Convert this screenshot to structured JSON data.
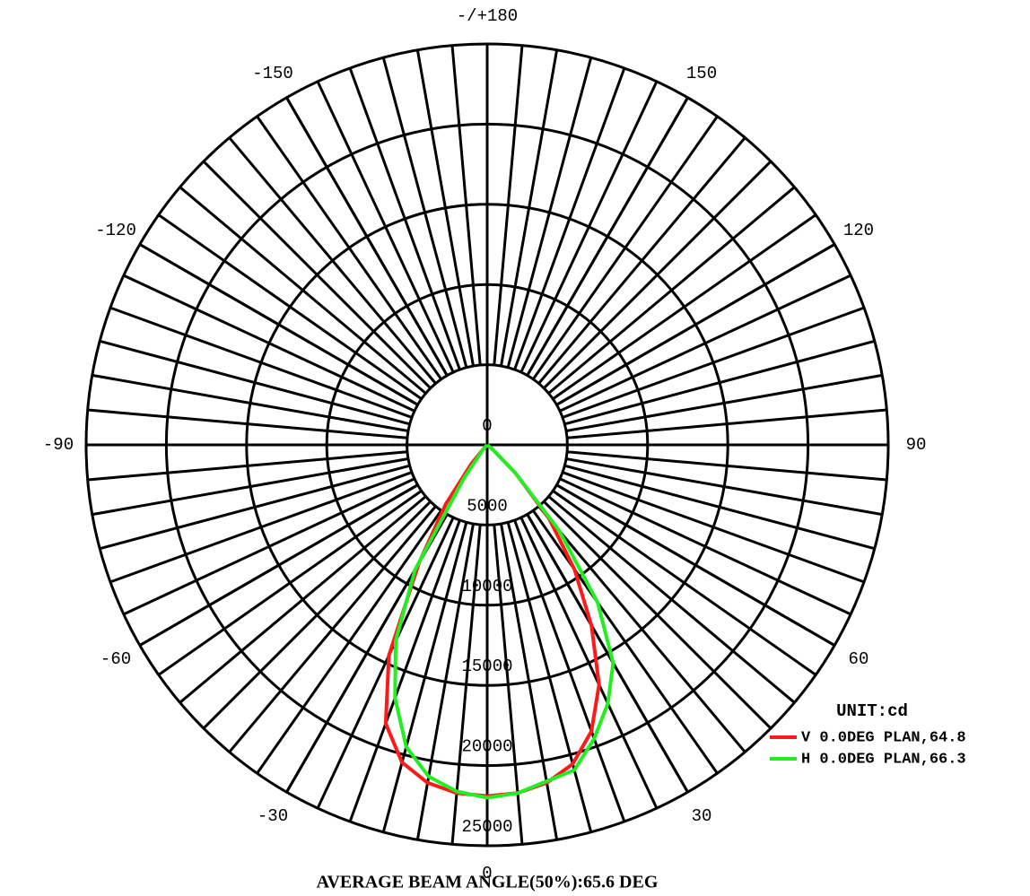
{
  "chart_data": {
    "type": "polar",
    "title": "AVERAGE BEAM ANGLE(50%):65.6 DEG",
    "unit_label": "UNIT:cd",
    "x": [
      -60,
      -50,
      -45,
      -40,
      -35,
      -30,
      -25,
      -20,
      -15,
      -10,
      -5,
      0,
      5,
      10,
      15,
      20,
      25,
      30,
      35,
      40,
      45,
      50,
      60
    ],
    "series": [
      {
        "name": "V 0.0DEG PLAN,64.8",
        "color": "#ff1a1a",
        "values": [
          0,
          0,
          200,
          1500,
          4500,
          8500,
          14500,
          18500,
          20500,
          21400,
          21800,
          21900,
          21800,
          21400,
          20600,
          19000,
          16500,
          13000,
          9500,
          6000,
          2500,
          500,
          0
        ]
      },
      {
        "name": "H 0.0DEG PLAN,66.3",
        "color": "#22ee22",
        "values": [
          0,
          0,
          0,
          500,
          2500,
          9000,
          13500,
          16800,
          19500,
          21000,
          21700,
          22000,
          21800,
          21300,
          21000,
          19500,
          17800,
          15700,
          12000,
          7000,
          2500,
          500,
          0
        ]
      }
    ],
    "xlim": [
      -180,
      180
    ],
    "xticks": [
      {
        "value": 180,
        "label": "-/+180"
      },
      150,
      120,
      90,
      60,
      30,
      0,
      -30,
      -60,
      -90,
      -120,
      -150
    ],
    "ylim": [
      0,
      25000
    ],
    "yticks": [
      0,
      5000,
      10000,
      15000,
      20000,
      25000
    ],
    "grid": true
  }
}
